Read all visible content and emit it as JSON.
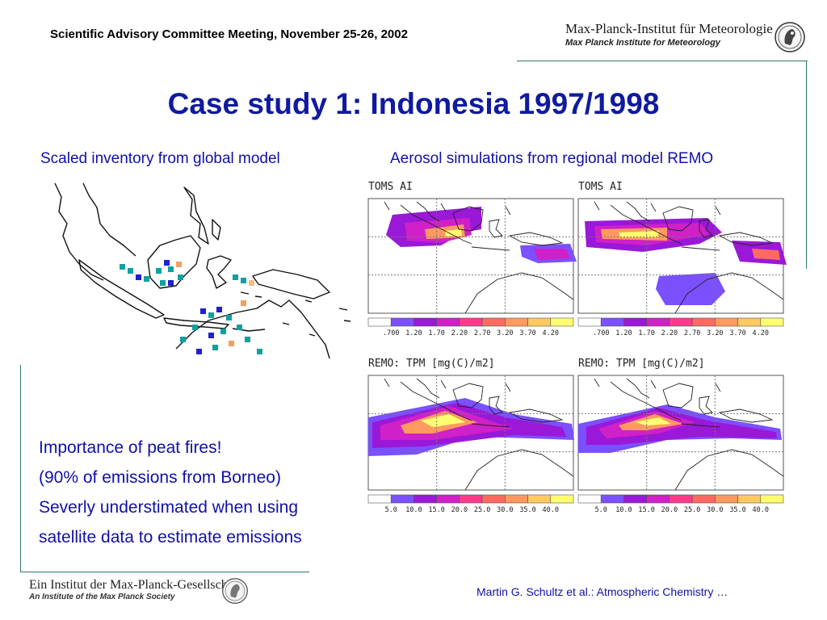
{
  "header": {
    "meeting": "Scientific Advisory Committee Meeting, November 25-26, 2002",
    "institute_de": "Max-Planck-Institut für Meteorologie",
    "institute_en": "Max Planck Institute for Meteorology"
  },
  "title": "Case study 1: Indonesia 1997/1998",
  "left_caption": "Scaled inventory from global model",
  "right_caption": "Aerosol simulations from regional model REMO",
  "panels": {
    "toms_left": {
      "title": "TOMS AI",
      "scale": [
        ".700",
        "1.20",
        "1.70",
        "2.20",
        "2.70",
        "3.20",
        "3.70",
        "4.20"
      ]
    },
    "toms_right": {
      "title": "TOMS AI",
      "scale": [
        ".700",
        "1.20",
        "1.70",
        "2.20",
        "2.70",
        "3.20",
        "3.70",
        "4.20"
      ]
    },
    "remo_left": {
      "title": "REMO: TPM [mg(C)/m2]",
      "scale": [
        "5.0",
        "10.0",
        "15.0",
        "20.0",
        "25.0",
        "30.0",
        "35.0",
        "40.0"
      ]
    },
    "remo_right": {
      "title": "REMO: TPM [mg(C)/m2]",
      "scale": [
        "5.0",
        "10.0",
        "15.0",
        "20.0",
        "25.0",
        "30.0",
        "35.0",
        "40.0"
      ]
    }
  },
  "colorbar_colors": [
    "#ffffff",
    "#7a50ff",
    "#9a18d8",
    "#d020c8",
    "#ff3a8a",
    "#ff6a60",
    "#ff9a60",
    "#ffca60",
    "#ffff70"
  ],
  "bullets": [
    "Importance of peat fires!",
    "(90% of emissions from Borneo)",
    "Severly understimated when using",
    "satellite data to estimate emissions"
  ],
  "footer": {
    "society_de": "Ein Institut der Max-Planck-Gesellschaft",
    "society_en": "An Institute of the Max Planck Society",
    "author": "Martin G. Schultz et al.: Atmospheric Chemistry …"
  }
}
